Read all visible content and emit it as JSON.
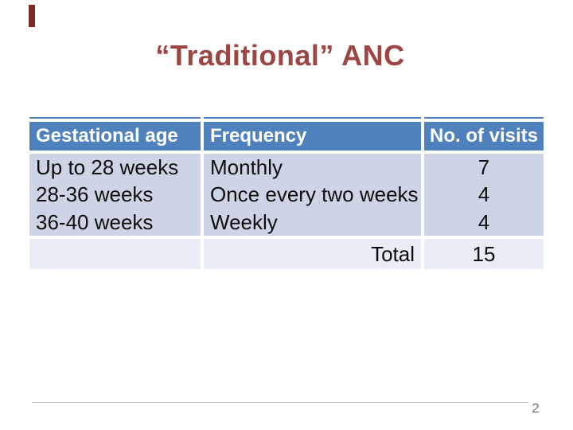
{
  "slide": {
    "title": "“Traditional” ANC",
    "page_number": "2",
    "colors": {
      "title_text": "#9c4543",
      "accent_bar": "#7d2a24",
      "table_header_bg": "#4f81bd",
      "table_header_text": "#ffffff",
      "table_body_bg": "#cdd4e5",
      "table_total_bg": "#e9ecf4",
      "body_text": "#0d0d0d",
      "page_number_text": "#757575"
    }
  },
  "table": {
    "headers": [
      "Gestational age",
      "Frequency",
      "No. of visits"
    ],
    "rows": [
      {
        "gestational_age": "Up to 28 weeks",
        "frequency": "Monthly",
        "visits": "7"
      },
      {
        "gestational_age": "28-36 weeks",
        "frequency": "Once every two weeks",
        "visits": "4"
      },
      {
        "gestational_age": "36-40 weeks",
        "frequency": "Weekly",
        "visits": "4"
      }
    ],
    "total_label": "Total",
    "total_visits": "15"
  }
}
